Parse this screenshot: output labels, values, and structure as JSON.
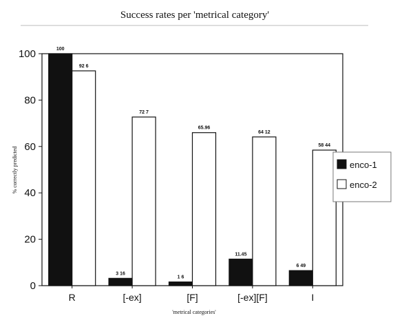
{
  "chart_data": {
    "type": "bar",
    "title": "Success rates per 'metrical category'",
    "xlabel": "'metrical categories'",
    "ylabel": "% correctly predicted",
    "ylim": [
      0,
      100
    ],
    "yticks": [
      0,
      20,
      40,
      60,
      80,
      100
    ],
    "categories": [
      "R",
      "[-ex]",
      "[F]",
      "[-ex][F]",
      "I"
    ],
    "series": [
      {
        "name": "enco-1",
        "color": "#111111",
        "values": [
          100,
          3.16,
          1.6,
          11.45,
          6.49
        ],
        "labels": [
          "100",
          "3 16",
          "1 6",
          "11.45",
          "6 49"
        ]
      },
      {
        "name": "enco-2",
        "color": "#ffffff",
        "values": [
          92.6,
          72.7,
          65.96,
          64.12,
          58.44
        ],
        "labels": [
          "92 6",
          "72 7",
          "65.96",
          "64 12",
          "58 44"
        ]
      }
    ],
    "legend": {
      "position": "right"
    },
    "grid": false
  }
}
